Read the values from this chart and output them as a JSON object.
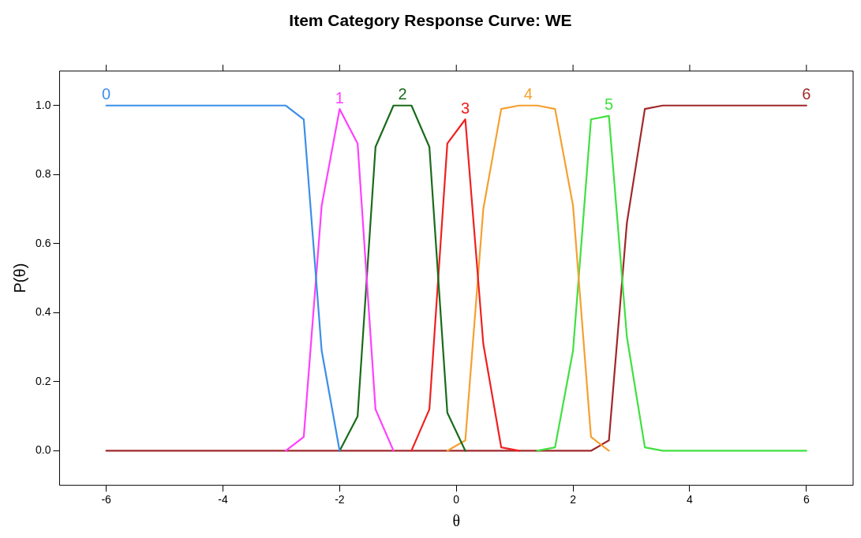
{
  "chart_data": {
    "type": "line",
    "title": "Item Category Response Curve: WE",
    "xlabel": "θ",
    "ylabel": "P(θ)",
    "x": [
      -6,
      -5.692,
      -5.385,
      -5.077,
      -4.769,
      -4.462,
      -4.154,
      -3.846,
      -3.538,
      -3.231,
      -2.923,
      -2.615,
      -2.308,
      -2,
      -1.692,
      -1.385,
      -1.077,
      -0.769,
      -0.462,
      -0.154,
      0.154,
      0.462,
      0.769,
      1.077,
      1.385,
      1.692,
      2,
      2.308,
      2.615,
      2.923,
      3.231,
      3.538,
      3.846,
      4.154,
      4.462,
      4.769,
      5.077,
      5.385,
      5.692,
      6
    ],
    "series": [
      {
        "name": "0",
        "color": "#3b8fe8",
        "values": [
          1,
          1,
          1,
          1,
          1,
          1,
          1,
          1,
          1,
          1,
          1,
          0.96,
          0.29,
          0,
          null,
          null,
          null,
          null,
          null,
          null,
          null,
          null,
          null,
          null,
          null,
          null,
          null,
          null,
          null,
          null,
          null,
          null,
          null,
          null,
          null,
          null,
          null,
          null,
          null,
          null
        ]
      },
      {
        "name": "1",
        "color": "#ff40ff",
        "values": [
          null,
          null,
          null,
          null,
          null,
          null,
          null,
          null,
          null,
          null,
          0,
          0.04,
          0.71,
          0.99,
          0.89,
          0.12,
          0,
          null,
          null,
          null,
          null,
          null,
          null,
          null,
          null,
          null,
          null,
          null,
          null,
          null,
          null,
          null,
          null,
          null,
          null,
          null,
          null,
          null,
          null,
          null
        ]
      },
      {
        "name": "2",
        "color": "#1a6b1a",
        "values": [
          null,
          null,
          null,
          null,
          null,
          null,
          null,
          null,
          null,
          null,
          null,
          null,
          null,
          0,
          0.1,
          0.88,
          1,
          1,
          0.88,
          0.11,
          0,
          null,
          null,
          null,
          null,
          null,
          null,
          null,
          null,
          null,
          null,
          null,
          null,
          null,
          null,
          null,
          null,
          null,
          null,
          null
        ]
      },
      {
        "name": "3",
        "color": "#f02020",
        "values": [
          null,
          null,
          null,
          null,
          null,
          null,
          null,
          null,
          null,
          null,
          null,
          null,
          null,
          null,
          null,
          null,
          null,
          0,
          0.12,
          0.89,
          0.96,
          0.31,
          0.01,
          0,
          null,
          null,
          null,
          null,
          null,
          null,
          null,
          null,
          null,
          null,
          null,
          null,
          null,
          null,
          null,
          null
        ]
      },
      {
        "name": "4",
        "color": "#f5a030",
        "values": [
          null,
          null,
          null,
          null,
          null,
          null,
          null,
          null,
          null,
          null,
          null,
          null,
          null,
          null,
          null,
          null,
          null,
          null,
          null,
          0,
          0.03,
          0.7,
          0.99,
          1,
          1,
          0.99,
          0.71,
          0.04,
          0,
          null,
          null,
          null,
          null,
          null,
          null,
          null,
          null,
          null,
          null,
          null
        ]
      },
      {
        "name": "5",
        "color": "#40e040",
        "values": [
          null,
          null,
          null,
          null,
          null,
          null,
          null,
          null,
          null,
          null,
          null,
          null,
          null,
          null,
          null,
          null,
          null,
          null,
          null,
          null,
          null,
          null,
          null,
          null,
          0,
          0.01,
          0.29,
          0.96,
          0.97,
          0.33,
          0.01,
          0,
          0,
          0,
          0,
          0,
          0,
          0,
          0,
          0
        ]
      },
      {
        "name": "6",
        "color": "#a0282a",
        "values": [
          0,
          0,
          0,
          0,
          0,
          0,
          0,
          0,
          0,
          0,
          0,
          0,
          0,
          0,
          0,
          0,
          0,
          0,
          0,
          0,
          0,
          0,
          0,
          0,
          0,
          0,
          0,
          0,
          0.03,
          0.66,
          0.99,
          1,
          1,
          1,
          1,
          1,
          1,
          1,
          1,
          1
        ]
      }
    ],
    "xlim": [
      -6.8,
      6.8
    ],
    "xticks": [
      -6,
      -4,
      -2,
      0,
      2,
      4,
      6
    ],
    "ylim": [
      -0.1,
      1.1
    ],
    "yticks": [
      {
        "value": 0,
        "label": "0.0"
      },
      {
        "value": 0.2,
        "label": "0.2"
      },
      {
        "value": 0.4,
        "label": "0.4"
      },
      {
        "value": 0.6,
        "label": "0.6"
      },
      {
        "value": 0.8,
        "label": "0.8"
      },
      {
        "value": 1,
        "label": "1.0"
      }
    ],
    "grid": false,
    "legend": false,
    "marker": "none",
    "line_style": "solid"
  }
}
